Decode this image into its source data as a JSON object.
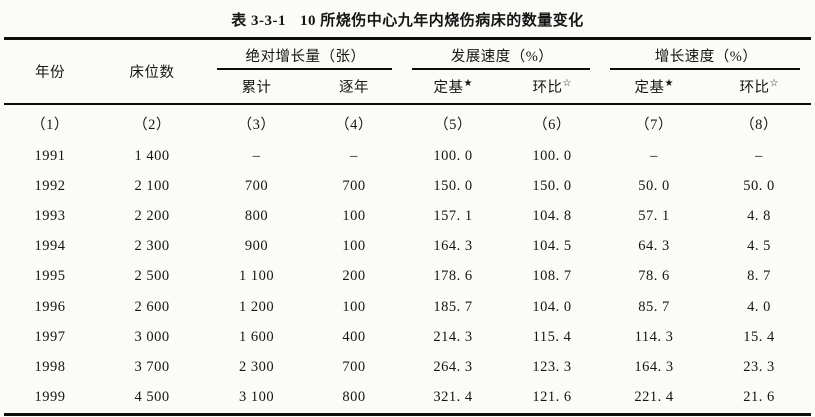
{
  "table": {
    "title_label": "表 3-3-1",
    "title_text": "10 所烧伤中心九年内烧伤病床的数量变化",
    "header": {
      "year": "年份",
      "beds": "床位数",
      "groups": [
        {
          "label": "绝对增长量（张）",
          "sub": [
            {
              "text": "累计",
              "mark": ""
            },
            {
              "text": "逐年",
              "mark": ""
            }
          ]
        },
        {
          "label": "发展速度（%）",
          "sub": [
            {
              "text": "定基",
              "mark": "★"
            },
            {
              "text": "环比",
              "mark": "☆"
            }
          ]
        },
        {
          "label": "增长速度（%）",
          "sub": [
            {
              "text": "定基",
              "mark": "★"
            },
            {
              "text": "环比",
              "mark": "☆"
            }
          ]
        }
      ],
      "column_numbers": [
        "（1）",
        "（2）",
        "（3）",
        "（4）",
        "（5）",
        "（6）",
        "（7）",
        "（8）"
      ]
    },
    "rows": [
      [
        "1991",
        "1 400",
        "–",
        "–",
        "100. 0",
        "100. 0",
        "–",
        "–"
      ],
      [
        "1992",
        "2 100",
        "700",
        "700",
        "150. 0",
        "150. 0",
        "50. 0",
        "50. 0"
      ],
      [
        "1993",
        "2 200",
        "800",
        "100",
        "157. 1",
        "104. 8",
        "57. 1",
        "4. 8"
      ],
      [
        "1994",
        "2 300",
        "900",
        "100",
        "164. 3",
        "104. 5",
        "64. 3",
        "4. 5"
      ],
      [
        "1995",
        "2 500",
        "1 100",
        "200",
        "178. 6",
        "108. 7",
        "78. 6",
        "8. 7"
      ],
      [
        "1996",
        "2 600",
        "1 200",
        "100",
        "185. 7",
        "104. 0",
        "85. 7",
        "4. 0"
      ],
      [
        "1997",
        "3 000",
        "1 600",
        "400",
        "214. 3",
        "115. 4",
        "114. 3",
        "15. 4"
      ],
      [
        "1998",
        "3 700",
        "2 300",
        "700",
        "264. 3",
        "123. 3",
        "164. 3",
        "23. 3"
      ],
      [
        "1999",
        "4 500",
        "3 100",
        "800",
        "321. 4",
        "121. 6",
        "221. 4",
        "21. 6"
      ]
    ]
  },
  "chart_data": {
    "type": "table",
    "title": "表 3-3-1 10 所烧伤中心九年内烧伤病床的数量变化",
    "columns": [
      "年份",
      "床位数",
      "绝对增长量(张)累计",
      "绝对增长量(张)逐年",
      "发展速度(%)定基",
      "发展速度(%)环比",
      "增长速度(%)定基",
      "增长速度(%)环比"
    ],
    "years": [
      1991,
      1992,
      1993,
      1994,
      1995,
      1996,
      1997,
      1998,
      1999
    ],
    "beds": [
      1400,
      2100,
      2200,
      2300,
      2500,
      2600,
      3000,
      3700,
      4500
    ],
    "abs_growth_cumulative": [
      null,
      700,
      800,
      900,
      1100,
      1200,
      1600,
      2300,
      3100
    ],
    "abs_growth_yearly": [
      null,
      700,
      100,
      100,
      200,
      100,
      400,
      700,
      800
    ],
    "dev_speed_fixed_base": [
      100.0,
      150.0,
      157.1,
      164.3,
      178.6,
      185.7,
      214.3,
      264.3,
      321.4
    ],
    "dev_speed_chain": [
      100.0,
      150.0,
      104.8,
      104.5,
      108.7,
      104.0,
      115.4,
      123.3,
      121.6
    ],
    "growth_speed_fixed_base": [
      null,
      50.0,
      57.1,
      64.3,
      78.6,
      85.7,
      114.3,
      164.3,
      221.4
    ],
    "growth_speed_chain": [
      null,
      50.0,
      4.8,
      4.5,
      8.7,
      4.0,
      15.4,
      23.3,
      21.6
    ]
  }
}
